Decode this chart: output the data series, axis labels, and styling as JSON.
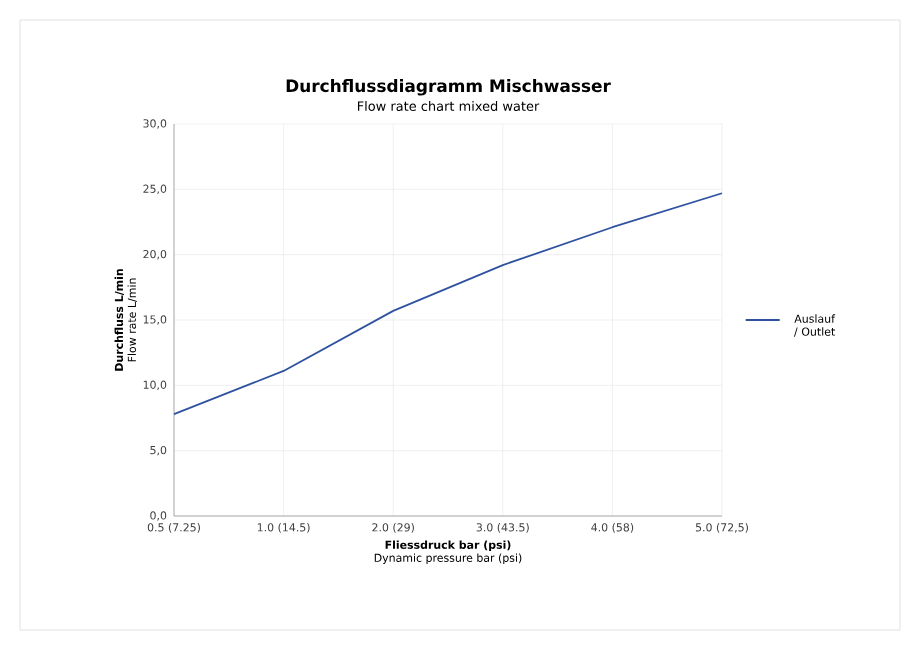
{
  "chart_data": {
    "type": "line",
    "title": "Durchflussdiagramm Mischwasser",
    "subtitle": "Flow rate chart mixed water",
    "xlabel": "Fliessdruck bar (psi)",
    "ylabel": "Durchfluss L/min",
    "annotations": [
      "Flow rate L/min",
      "Dynamic pressure bar (psi)"
    ],
    "categories": [
      "0.5 (7.25)",
      "1.0 (14.5)",
      "2.0 (29)",
      "3.0 (43.5)",
      "4.0 (58)",
      "5.0 (72,5)"
    ],
    "series": [
      {
        "name": "Auslauf / Outlet",
        "color": "#2f52a0",
        "values": [
          7.8,
          11.1,
          15.7,
          19.2,
          22.1,
          24.7
        ]
      }
    ],
    "ylim": [
      0,
      30
    ],
    "yticks": [
      {
        "value": 0,
        "label": "0,0"
      },
      {
        "value": 5,
        "label": "5,0"
      },
      {
        "value": 10,
        "label": "10,0"
      },
      {
        "value": 15,
        "label": "15,0"
      },
      {
        "value": 20,
        "label": "20,0"
      },
      {
        "value": 25,
        "label": "25,0"
      },
      {
        "value": 30,
        "label": "30,0"
      }
    ],
    "grid": true,
    "legend": "right",
    "marker": "none",
    "line_style": "solid"
  }
}
